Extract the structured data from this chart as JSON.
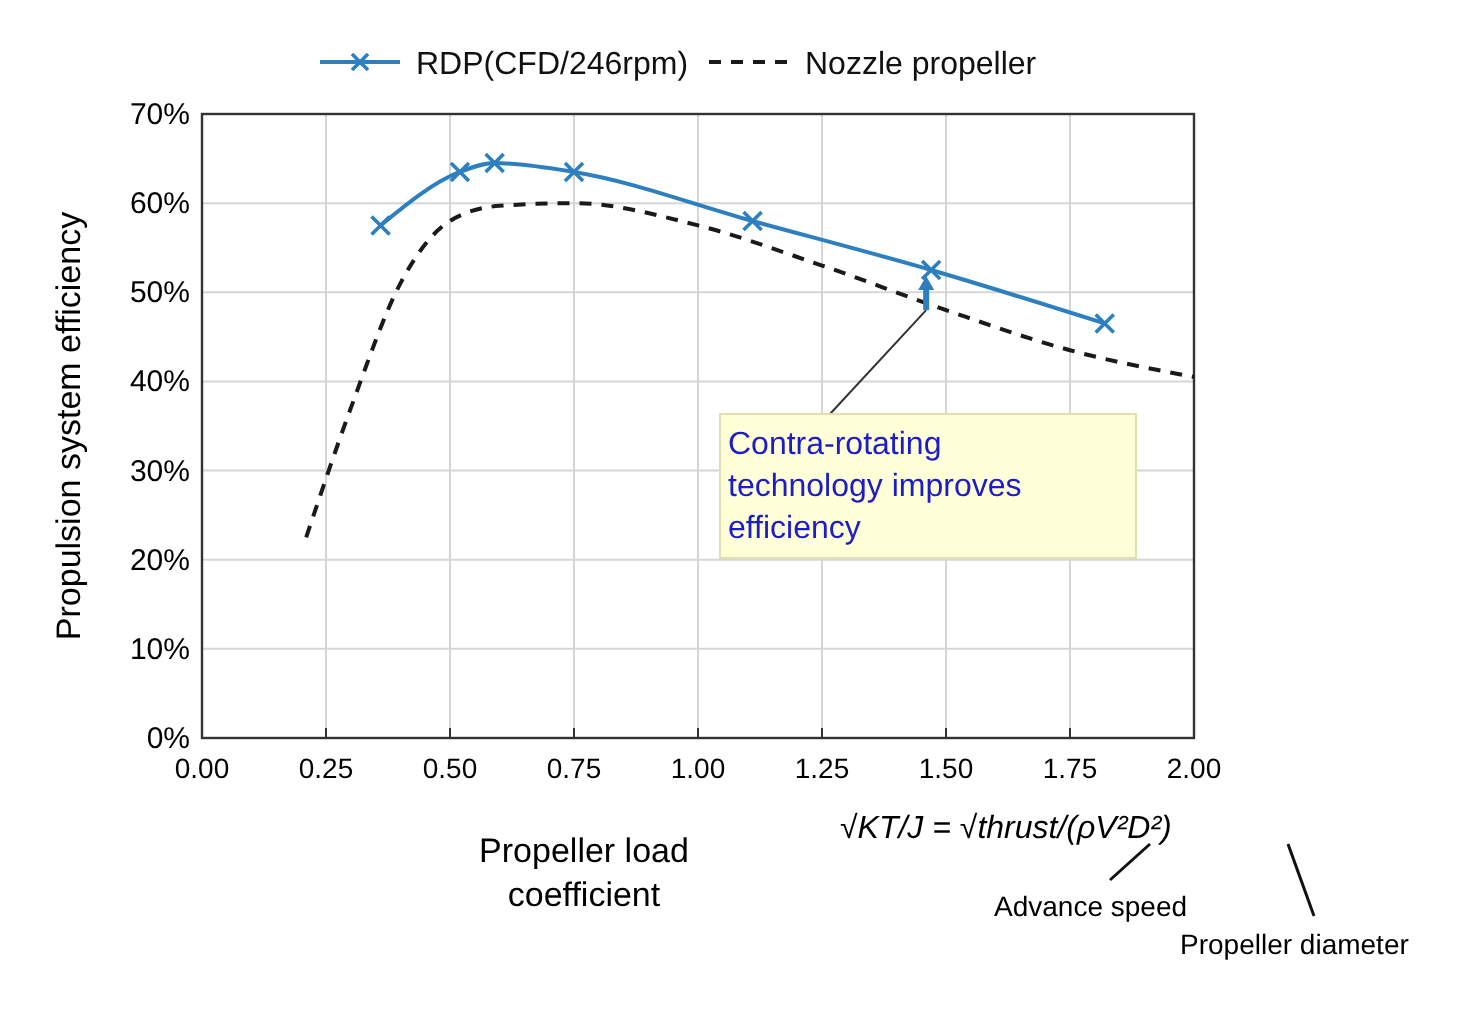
{
  "chart_data": {
    "type": "line",
    "xlabel": "Propeller load coefficient",
    "ylabel": "Propulsion system efficiency",
    "xlim": [
      0,
      2
    ],
    "xticks": [
      {
        "value": 0,
        "label": "0.00"
      },
      {
        "value": 0.25,
        "label": "0.25"
      },
      {
        "value": 0.5,
        "label": "0.50"
      },
      {
        "value": 0.75,
        "label": "0.75"
      },
      {
        "value": 1,
        "label": "1.00"
      },
      {
        "value": 1.25,
        "label": "1.25"
      },
      {
        "value": 1.5,
        "label": "1.50"
      },
      {
        "value": 1.75,
        "label": "1.75"
      },
      {
        "value": 2,
        "label": "2.00"
      }
    ],
    "ylim": [
      0,
      70
    ],
    "yticks": [
      {
        "value": 0,
        "label": "0%"
      },
      {
        "value": 10,
        "label": "10%"
      },
      {
        "value": 20,
        "label": "20%"
      },
      {
        "value": 30,
        "label": "30%"
      },
      {
        "value": 40,
        "label": "40%"
      },
      {
        "value": 50,
        "label": "50%"
      },
      {
        "value": 60,
        "label": "60%"
      },
      {
        "value": 70,
        "label": "70%"
      }
    ],
    "grid": true,
    "legend": "top",
    "series": [
      {
        "name": "RDP(CFD/246rpm)",
        "color": "#2e7fc0",
        "marker": "cross",
        "line_style": "solid",
        "x": [
          0.36,
          0.52,
          0.59,
          0.75,
          1.11,
          1.47,
          1.82
        ],
        "values": [
          57.5,
          63.5,
          64.5,
          63.5,
          58,
          52.5,
          46.5
        ]
      },
      {
        "name": "Nozzle propeller",
        "color": "#1a1a1a",
        "marker": "none",
        "line_style": "dashed",
        "x": [
          0.21,
          0.3,
          0.4,
          0.5,
          0.6,
          0.75,
          1.0,
          1.25,
          1.5,
          1.75,
          2.0
        ],
        "values": [
          22.5,
          37,
          51,
          58,
          59.7,
          60,
          57.5,
          53,
          48,
          43.5,
          40.5
        ]
      }
    ],
    "annotations": [
      {
        "text": "Contra-rotating technology improves efficiency",
        "x": 1.46,
        "y": 48
      },
      "√KT/J = √thrust/(ρV²D²)",
      "Advance speed",
      "Propeller diameter"
    ]
  }
}
